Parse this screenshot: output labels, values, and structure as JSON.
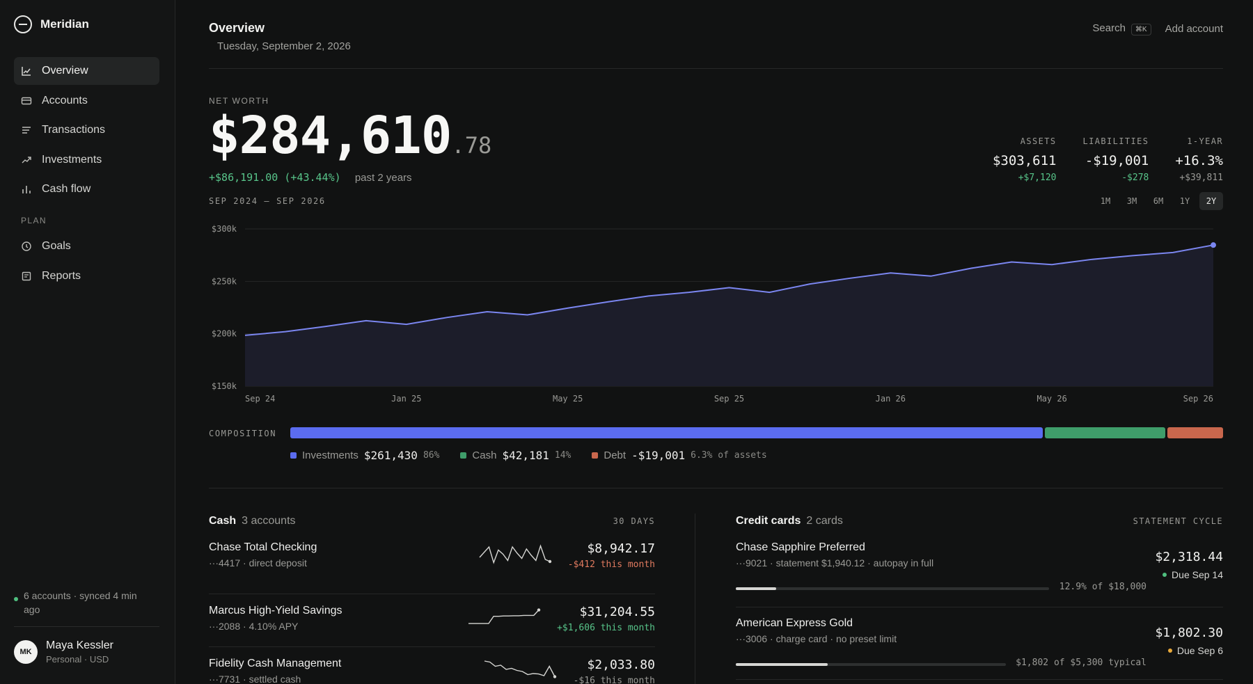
{
  "app": {
    "name": "Meridian"
  },
  "sidebar": {
    "items": [
      {
        "label": "Overview",
        "icon": "line-chart-icon",
        "active": true
      },
      {
        "label": "Accounts",
        "icon": "card-icon",
        "active": false
      },
      {
        "label": "Transactions",
        "icon": "list-icon",
        "active": false
      },
      {
        "label": "Investments",
        "icon": "trend-up-icon",
        "active": false
      },
      {
        "label": "Cash flow",
        "icon": "bar-chart-icon",
        "active": false
      }
    ],
    "plan_label": "PLAN",
    "plan_items": [
      {
        "label": "Goals",
        "icon": "clock-icon"
      },
      {
        "label": "Reports",
        "icon": "report-icon"
      }
    ],
    "sync_status": "6 accounts · synced 4 min ago",
    "user": {
      "initials": "MK",
      "name": "Maya Kessler",
      "subtitle": "Personal · USD"
    }
  },
  "header": {
    "title": "Overview",
    "date": "Tuesday, September 2, 2026",
    "search_label": "Search",
    "search_shortcut": "⌘K",
    "add_account_label": "Add account"
  },
  "net_worth": {
    "label": "NET WORTH",
    "value_main": "$284,610",
    "value_cents": ".78",
    "change": "+$86,191.00 (+43.44%)",
    "change_period": "past 2 years",
    "range_label": "SEP 2024 – SEP 2026"
  },
  "stats": [
    {
      "label": "ASSETS",
      "value": "$303,611",
      "delta": "+$7,120",
      "delta_tone": "pos",
      "value_tone": "normal"
    },
    {
      "label": "LIABILITIES",
      "value": "-$19,001",
      "delta": "-$278",
      "delta_tone": "pos",
      "value_tone": "normal"
    },
    {
      "label": "1-YEAR",
      "value": "+16.3%",
      "delta": "+$39,811",
      "delta_tone": "muted",
      "value_tone": "pos"
    }
  ],
  "periods": [
    {
      "label": "1M",
      "active": false
    },
    {
      "label": "3M",
      "active": false
    },
    {
      "label": "6M",
      "active": false
    },
    {
      "label": "1Y",
      "active": false
    },
    {
      "label": "2Y",
      "active": true
    }
  ],
  "chart_data": {
    "type": "area",
    "x": [
      "2024-09",
      "2024-10",
      "2024-11",
      "2024-12",
      "2025-01",
      "2025-02",
      "2025-03",
      "2025-04",
      "2025-05",
      "2025-06",
      "2025-07",
      "2025-08",
      "2025-09",
      "2025-10",
      "2025-11",
      "2025-12",
      "2026-01",
      "2026-02",
      "2026-03",
      "2026-04",
      "2026-05",
      "2026-06",
      "2026-07",
      "2026-08",
      "2026-09"
    ],
    "values": [
      198500,
      202000,
      207000,
      212500,
      209000,
      215500,
      221000,
      218000,
      224500,
      230500,
      236000,
      239500,
      244000,
      239500,
      247500,
      253000,
      258000,
      255000,
      262500,
      268500,
      266000,
      271000,
      274500,
      277500,
      284611
    ],
    "x_ticks": [
      "Sep 24",
      "Jan 25",
      "May 25",
      "Sep 25",
      "Jan 26",
      "May 26",
      "Sep 26"
    ],
    "y_ticks": [
      "$300k",
      "$250k",
      "$200k",
      "$150k"
    ],
    "ylim": [
      150000,
      300000
    ],
    "grid": true,
    "line_color": "#7b86f0"
  },
  "composition": {
    "label": "COMPOSITION",
    "segments": [
      {
        "name": "Investments",
        "value": "$261,430",
        "pct": "86%",
        "share": 0.81,
        "color": "#5b6cf0"
      },
      {
        "name": "Cash",
        "value": "$42,181",
        "pct": "14%",
        "share": 0.13,
        "color": "#3f9d6a"
      },
      {
        "name": "Debt",
        "value": "-$19,001",
        "pct": "6.3% of assets",
        "share": 0.06,
        "color": "#c9674d"
      }
    ]
  },
  "cash": {
    "title": "Cash",
    "count": "3 accounts",
    "right_label": "30 DAYS",
    "accounts": [
      {
        "name": "Chase Total Checking",
        "sub": "···4417 · direct deposit",
        "amount": "$8,942.17",
        "change": "-$412 this month",
        "tone": "neg",
        "spark": [
          0.7,
          0.45,
          0.2,
          0.95,
          0.35,
          0.55,
          0.85,
          0.2,
          0.5,
          0.75,
          0.3,
          0.6,
          0.85,
          0.15,
          0.8,
          0.9
        ]
      },
      {
        "name": "Marcus High-Yield Savings",
        "sub": "···2088 · 4.10% APY",
        "amount": "$31,204.55",
        "change": "+$1,606 this month",
        "tone": "pos",
        "spark": [
          0.85,
          0.85,
          0.85,
          0.85,
          0.85,
          0.45,
          0.45,
          0.43,
          0.43,
          0.42,
          0.42,
          0.4,
          0.4,
          0.4,
          0.1
        ]
      },
      {
        "name": "Fidelity Cash Management",
        "sub": "···7731 · settled cash",
        "amount": "$2,033.80",
        "change": "-$16 this month",
        "tone": "muted",
        "spark": [
          0.1,
          0.15,
          0.35,
          0.3,
          0.5,
          0.45,
          0.55,
          0.6,
          0.75,
          0.7,
          0.72,
          0.8,
          0.35,
          0.85
        ]
      }
    ]
  },
  "credit": {
    "title": "Credit cards",
    "count": "2 cards",
    "right_label": "STATEMENT CYCLE",
    "cards": [
      {
        "name": "Chase Sapphire Preferred",
        "sub": "···9021 · statement $1,940.12 · autopay in full",
        "amount": "$2,318.44",
        "progress_text": "12.9% of $18,000",
        "progress": 0.129,
        "due": "Due Sep 14",
        "due_color": "#4fbf7f"
      },
      {
        "name": "American Express Gold",
        "sub": "···3006 · charge card · no preset limit",
        "amount": "$1,802.30",
        "progress_text": "$1,802 of $5,300 typical",
        "progress": 0.34,
        "due": "Due Sep 6",
        "due_color": "#e8a93a"
      }
    ]
  }
}
